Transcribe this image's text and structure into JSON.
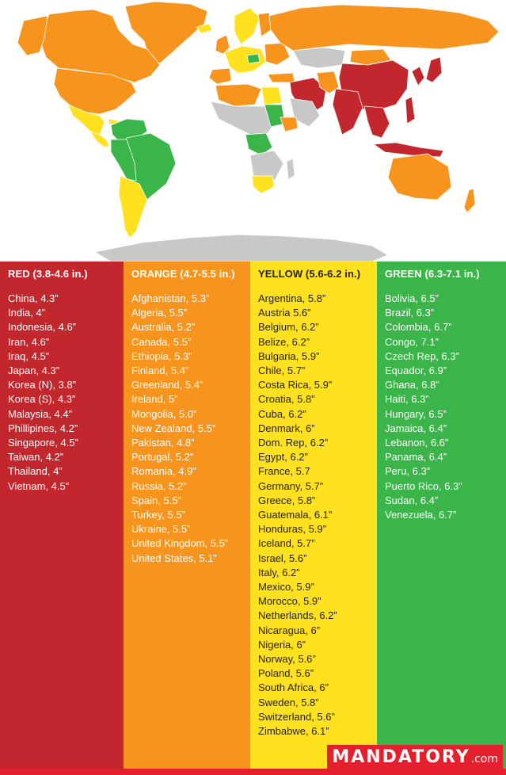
{
  "map": {
    "colors": {
      "red": "#c1272d",
      "orange": "#f7941d",
      "yellow": "#ffe11f",
      "green": "#3bb54a",
      "gray": "#c8c8c8"
    }
  },
  "legend": {
    "columns": [
      {
        "key": "red",
        "title": "RED (3.8-4.6 in.)",
        "color": "#c1272d",
        "items": [
          "China, 4.3”",
          "India, 4”",
          "Indonesia, 4.6”",
          "Iran, 4.6”",
          "Iraq, 4.5”",
          "Japan, 4.3”",
          "Korea (N), 3.8”",
          "Korea (S), 4.3”",
          "Malaysia, 4.4”",
          "Phillipines, 4.2”",
          "Singapore, 4.5”",
          "Taiwan, 4.2”",
          "Thailand, 4”",
          "Vietnam, 4.5”"
        ]
      },
      {
        "key": "orange",
        "title": "ORANGE (4.7-5.5 in.)",
        "color": "#f7941d",
        "items": [
          "Afghanistan, 5.3”",
          "Algeria, 5.5”",
          "Australia, 5.2”",
          "Canada, 5.5”",
          "Ethiopia, 5.3”",
          "Finland, 5.4”",
          "Greenland, 5.4”",
          "Ireland, 5”",
          "Mongolia, 5.0”",
          "New Zealand, 5.5”",
          "Pakistan, 4.8”",
          "Portugal, 5.2”",
          "Romania, 4.9”",
          "Russia, 5.2”",
          "Spain, 5.5”",
          "Turkey, 5.5”",
          "Ukraine, 5.5”",
          "United Kingdom, 5.5”",
          "United States, 5.1”"
        ]
      },
      {
        "key": "yellow",
        "title": "YELLOW (5.6-6.2 in.)",
        "color": "#ffe11f",
        "items": [
          "Argentina, 5.8”",
          "Austria 5.6”",
          "Belgium, 6.2”",
          "Belize, 6.2”",
          "Bulgaria, 5.9”",
          "Chile, 5.7”",
          "Costa Rica, 5.9”",
          "Croatia, 5.8”",
          "Cuba, 6.2”",
          "Denmark, 6”",
          "Dom. Rep, 6.2”",
          "Egypt, 6.2”",
          "France, 5.7",
          "Germany, 5.7”",
          "Greece, 5.8”",
          "Guatemala, 6.1”",
          "Honduras, 5.9”",
          "Iceland, 5.7”",
          "Israel, 5.6”",
          "Italy, 6.2”",
          "Mexico, 5.9”",
          "Morocco, 5.9”",
          "Netherlands, 6.2”",
          "Nicaragua, 6”",
          "Nigeria, 6”",
          "Norway, 5.6”",
          "Poland, 5.6”",
          "South Africa, 6”",
          "Sweden, 5.8”",
          "Switzerland, 5.6”",
          "Zimbabwe, 6.1”"
        ]
      },
      {
        "key": "green",
        "title": "GREEN (6.3-7.1 in.)",
        "color": "#3bb54a",
        "items": [
          "Bolivia, 6.5”",
          "Brazil, 6.3”",
          "Colombia, 6.7”",
          "Congo, 7.1”",
          "Czech Rep, 6.3”",
          "Equador, 6.9”",
          "Ghana, 6.8”",
          "Haiti, 6.3”",
          "Hungary, 6.5”",
          "Jamaica, 6.4”",
          "Lebanon, 6.6”",
          "Panama, 6.4”",
          "Peru, 6.3”",
          "Puerto Rico, 6.3”",
          "Sudan, 6.4”",
          "Venezuela, 6.7”"
        ]
      }
    ]
  },
  "brand": {
    "logo_main": "MANDATORY",
    "logo_tld": ".com",
    "color": "#e4202e"
  }
}
